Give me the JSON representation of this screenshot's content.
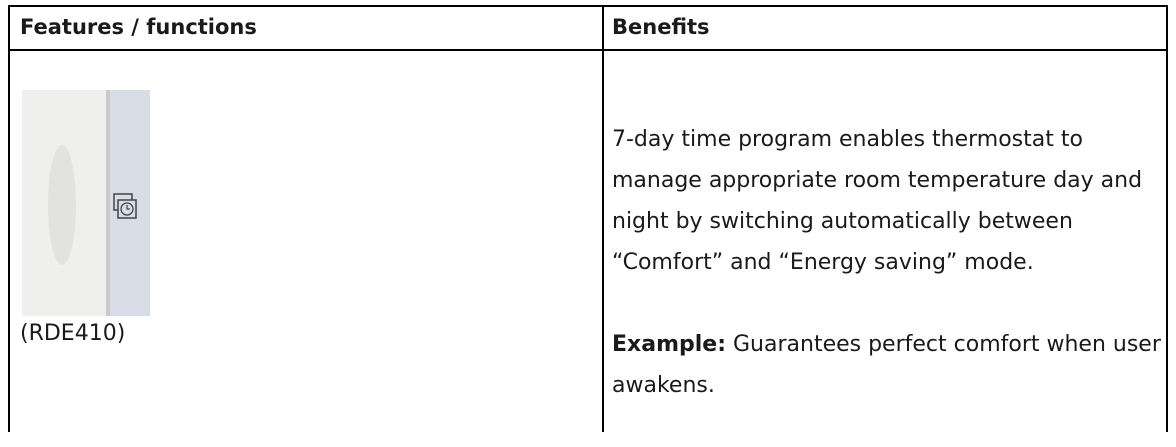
{
  "header": {
    "columns": [
      "Features / functions",
      "Benefits"
    ]
  },
  "rows": [
    {
      "feature_caption": "(RDE410)",
      "benefit_text": "7-day time program enables thermostat to manage appropriate room temperature day and night by switching automatically between “Comfort” and “Energy saving” mode.",
      "example_label": "Example:",
      "example_text": "Guarantees perfect comfort when user awakens."
    }
  ]
}
